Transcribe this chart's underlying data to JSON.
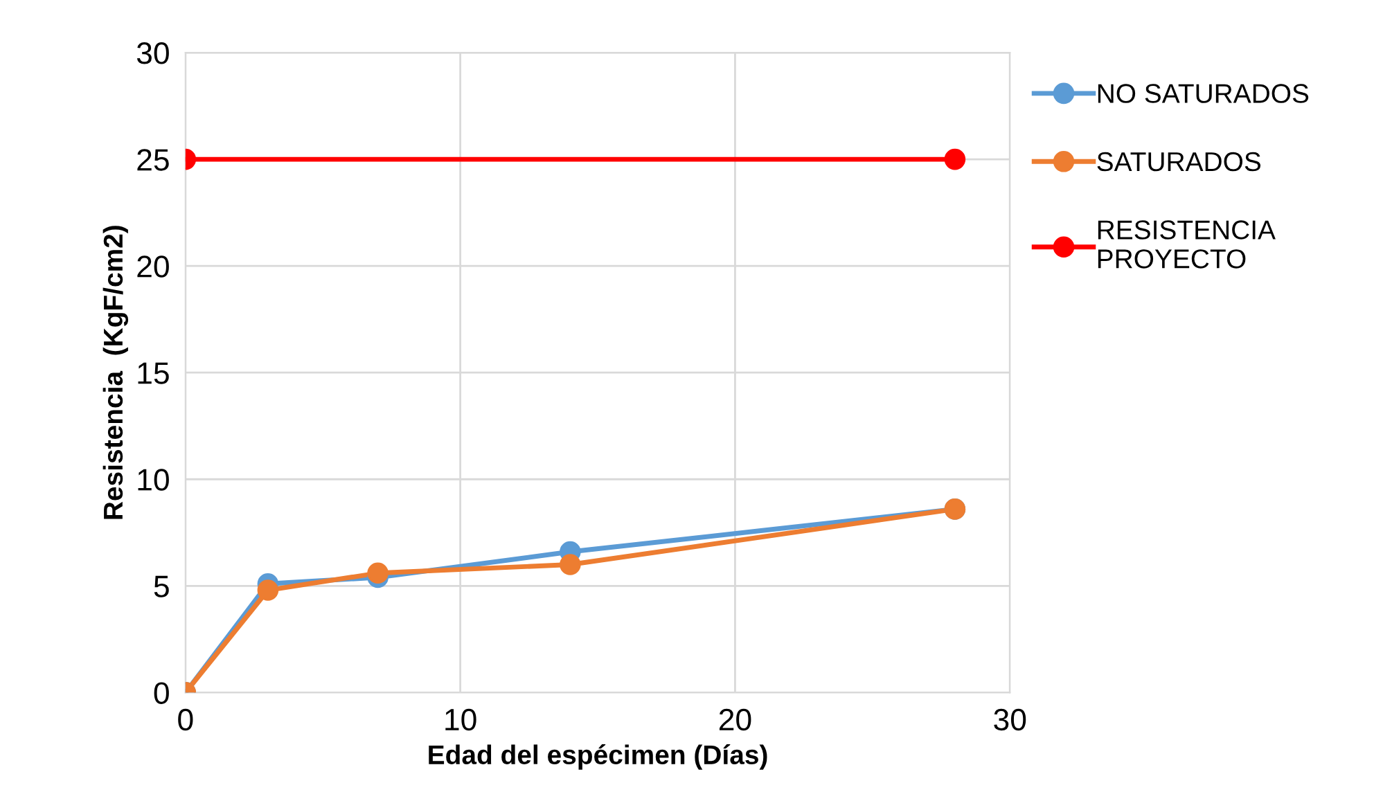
{
  "chart_data": {
    "type": "line",
    "xlabel": "Edad del espécimen (Días)",
    "ylabel": "Resistencia  (KgF/cm2)",
    "xlim": [
      0,
      30
    ],
    "xticks": [
      0,
      10,
      20,
      30
    ],
    "ylim": [
      0,
      30
    ],
    "yticks": [
      0,
      5,
      10,
      15,
      20,
      25,
      30
    ],
    "grid": true,
    "legend": "right",
    "marker": "circle",
    "line_style": "solid",
    "series": [
      {
        "name": "NO SATURADOS",
        "color": "#5b9bd5",
        "x": [
          0,
          3,
          7,
          14,
          28
        ],
        "values": [
          0,
          5.1,
          5.4,
          6.6,
          8.6
        ]
      },
      {
        "name": "SATURADOS",
        "color": "#ed7d31",
        "x": [
          0,
          3,
          7,
          14,
          28
        ],
        "values": [
          0,
          4.8,
          5.6,
          6.0,
          8.6
        ]
      },
      {
        "name": "RESISTENCIA\nPROYECTO",
        "color": "#ff0000",
        "x": [
          0,
          28
        ],
        "values": [
          25,
          25
        ]
      }
    ]
  }
}
